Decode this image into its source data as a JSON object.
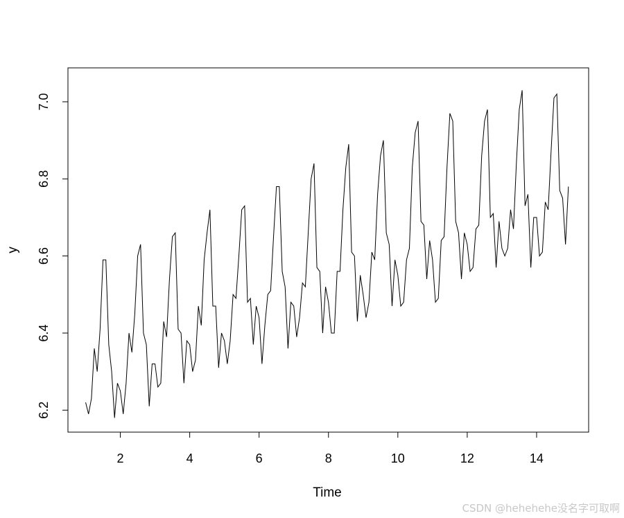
{
  "chart_data": {
    "type": "line",
    "title": "",
    "xlabel": "Time",
    "ylabel": "y",
    "xlim": [
      1,
      15
    ],
    "ylim": [
      6.15,
      7.07
    ],
    "x_ticks": [
      2,
      4,
      6,
      8,
      10,
      12,
      14
    ],
    "x_tick_labels": [
      "2",
      "4",
      "6",
      "8",
      "10",
      "12",
      "14"
    ],
    "y_ticks": [
      6.2,
      6.4,
      6.6,
      6.8,
      7.0
    ],
    "y_tick_labels": [
      "6.2",
      "6.4",
      "6.6",
      "6.8",
      "7.0"
    ],
    "grid": false,
    "legend": "none",
    "line_color": "#000000",
    "series": [
      {
        "start": 1,
        "frequency": 12,
        "values": [
          6.22,
          6.19,
          6.23,
          6.36,
          6.3,
          6.41,
          6.59,
          6.59,
          6.37,
          6.3,
          6.18,
          6.27,
          6.25,
          6.19,
          6.27,
          6.4,
          6.35,
          6.45,
          6.6,
          6.63,
          6.4,
          6.37,
          6.21,
          6.32,
          6.32,
          6.26,
          6.27,
          6.43,
          6.39,
          6.54,
          6.65,
          6.66,
          6.41,
          6.4,
          6.27,
          6.38,
          6.37,
          6.3,
          6.33,
          6.47,
          6.42,
          6.59,
          6.66,
          6.72,
          6.47,
          6.47,
          6.31,
          6.4,
          6.38,
          6.32,
          6.38,
          6.5,
          6.49,
          6.6,
          6.72,
          6.73,
          6.48,
          6.49,
          6.37,
          6.47,
          6.44,
          6.32,
          6.42,
          6.5,
          6.51,
          6.65,
          6.78,
          6.78,
          6.56,
          6.52,
          6.36,
          6.48,
          6.47,
          6.39,
          6.44,
          6.53,
          6.52,
          6.66,
          6.8,
          6.84,
          6.57,
          6.56,
          6.4,
          6.52,
          6.48,
          6.4,
          6.4,
          6.56,
          6.56,
          6.72,
          6.83,
          6.89,
          6.61,
          6.6,
          6.43,
          6.55,
          6.5,
          6.44,
          6.48,
          6.61,
          6.59,
          6.76,
          6.86,
          6.9,
          6.66,
          6.63,
          6.47,
          6.59,
          6.55,
          6.47,
          6.48,
          6.59,
          6.62,
          6.83,
          6.92,
          6.95,
          6.69,
          6.68,
          6.54,
          6.64,
          6.59,
          6.48,
          6.49,
          6.64,
          6.65,
          6.83,
          6.97,
          6.95,
          6.69,
          6.66,
          6.54,
          6.66,
          6.63,
          6.56,
          6.57,
          6.67,
          6.68,
          6.86,
          6.95,
          6.98,
          6.7,
          6.71,
          6.57,
          6.69,
          6.62,
          6.6,
          6.62,
          6.72,
          6.67,
          6.84,
          6.98,
          7.03,
          6.73,
          6.76,
          6.57,
          6.7,
          6.7,
          6.6,
          6.61,
          6.74,
          6.72,
          6.87,
          7.01,
          7.02,
          6.77,
          6.75,
          6.63,
          6.78
        ]
      }
    ]
  },
  "watermark": "CSDN @hehehehe没名字可取啊"
}
